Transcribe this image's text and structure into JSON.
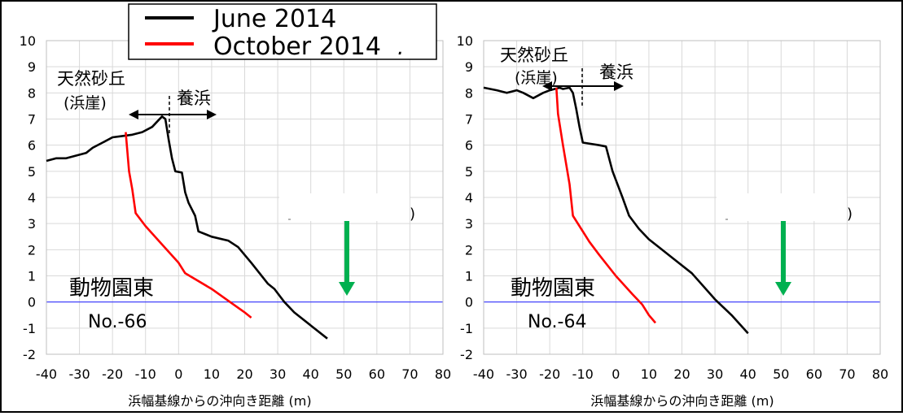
{
  "legend": {
    "items": [
      {
        "label": "June 2014",
        "color": "#000000"
      },
      {
        "label": "October 2014",
        "color": "#ff0000"
      }
    ],
    "trailing_mark": "."
  },
  "chart_data": [
    {
      "type": "line",
      "xlabel": "浜幅基線からの沖向き距離 (m)",
      "ylabel": "",
      "xlim": [
        -40,
        80
      ],
      "ylim": [
        -2,
        10
      ],
      "xticks": [
        -40,
        -30,
        -20,
        -10,
        0,
        10,
        20,
        30,
        40,
        50,
        60,
        70,
        80
      ],
      "yticks": [
        -2,
        -1,
        0,
        1,
        2,
        3,
        4,
        5,
        6,
        7,
        8,
        9,
        10
      ],
      "grid": true,
      "reference_line_y": 0,
      "series": [
        {
          "name": "June 2014",
          "color": "#000000",
          "points": [
            [
              -40,
              5.4
            ],
            [
              -37,
              5.5
            ],
            [
              -34,
              5.5
            ],
            [
              -31,
              5.6
            ],
            [
              -28,
              5.7
            ],
            [
              -26,
              5.9
            ],
            [
              -23,
              6.1
            ],
            [
              -20,
              6.3
            ],
            [
              -17,
              6.35
            ],
            [
              -14,
              6.4
            ],
            [
              -11,
              6.5
            ],
            [
              -8,
              6.7
            ],
            [
              -5,
              7.1
            ],
            [
              -4,
              7.0
            ],
            [
              -3,
              6.2
            ],
            [
              -2,
              5.5
            ],
            [
              -1,
              5.0
            ],
            [
              1,
              4.95
            ],
            [
              2,
              4.2
            ],
            [
              3,
              3.8
            ],
            [
              5,
              3.3
            ],
            [
              6,
              2.7
            ],
            [
              10,
              2.5
            ],
            [
              15,
              2.35
            ],
            [
              18,
              2.1
            ],
            [
              22,
              1.5
            ],
            [
              27,
              0.7
            ],
            [
              29,
              0.5
            ],
            [
              32,
              0.0
            ],
            [
              35,
              -0.4
            ],
            [
              40,
              -0.9
            ],
            [
              45,
              -1.4
            ]
          ]
        },
        {
          "name": "October 2014",
          "color": "#ff0000",
          "points": [
            [
              -16,
              6.5
            ],
            [
              -15,
              5.0
            ],
            [
              -14,
              4.3
            ],
            [
              -13,
              3.4
            ],
            [
              -10,
              2.9
            ],
            [
              -5,
              2.2
            ],
            [
              0,
              1.5
            ],
            [
              2,
              1.1
            ],
            [
              10,
              0.5
            ],
            [
              15,
              0.05
            ],
            [
              20,
              -0.4
            ],
            [
              22,
              -0.6
            ]
          ]
        }
      ],
      "annotations": {
        "dune_label_1": "天然砂丘",
        "dune_label_2": "(浜崖)",
        "nourish_label": "養浜",
        "site_name": "動物園東",
        "site_no": "No.-66",
        "paren": ")"
      }
    },
    {
      "type": "line",
      "xlabel": "浜幅基線からの沖向き距離 (m)",
      "ylabel": "",
      "xlim": [
        -40,
        80
      ],
      "ylim": [
        -2,
        10
      ],
      "xticks": [
        -40,
        -30,
        -20,
        -10,
        0,
        10,
        20,
        30,
        40,
        50,
        60,
        70,
        80
      ],
      "yticks": [
        -2,
        -1,
        0,
        1,
        2,
        3,
        4,
        5,
        6,
        7,
        8,
        9,
        10
      ],
      "grid": true,
      "reference_line_y": 0,
      "series": [
        {
          "name": "June 2014",
          "color": "#000000",
          "points": [
            [
              -40,
              8.2
            ],
            [
              -36,
              8.1
            ],
            [
              -33,
              8.0
            ],
            [
              -30,
              8.1
            ],
            [
              -28,
              8.0
            ],
            [
              -25,
              7.8
            ],
            [
              -22,
              8.0
            ],
            [
              -20,
              8.1
            ],
            [
              -17,
              8.2
            ],
            [
              -16,
              8.15
            ],
            [
              -14,
              8.2
            ],
            [
              -13,
              8.0
            ],
            [
              -12,
              7.4
            ],
            [
              -11,
              6.7
            ],
            [
              -10,
              6.1
            ],
            [
              -5,
              6.0
            ],
            [
              -3,
              5.95
            ],
            [
              -1,
              5.0
            ],
            [
              2,
              4.0
            ],
            [
              4,
              3.3
            ],
            [
              7,
              2.8
            ],
            [
              10,
              2.4
            ],
            [
              13,
              2.1
            ],
            [
              17,
              1.7
            ],
            [
              23,
              1.1
            ],
            [
              30,
              0.1
            ],
            [
              35,
              -0.5
            ],
            [
              40,
              -1.2
            ]
          ]
        },
        {
          "name": "October 2014",
          "color": "#ff0000",
          "points": [
            [
              -18,
              8.2
            ],
            [
              -17.5,
              7.2
            ],
            [
              -16,
              6.0
            ],
            [
              -14,
              4.5
            ],
            [
              -13,
              3.3
            ],
            [
              -8,
              2.3
            ],
            [
              -5,
              1.8
            ],
            [
              0,
              1.0
            ],
            [
              5,
              0.3
            ],
            [
              8,
              -0.1
            ],
            [
              10,
              -0.5
            ],
            [
              12,
              -0.8
            ]
          ]
        }
      ],
      "annotations": {
        "dune_label_1": "天然砂丘",
        "dune_label_2": "(浜崖)",
        "nourish_label": "養浜",
        "site_name": "動物園東",
        "site_no": "No.-64",
        "paren": ")"
      }
    }
  ]
}
